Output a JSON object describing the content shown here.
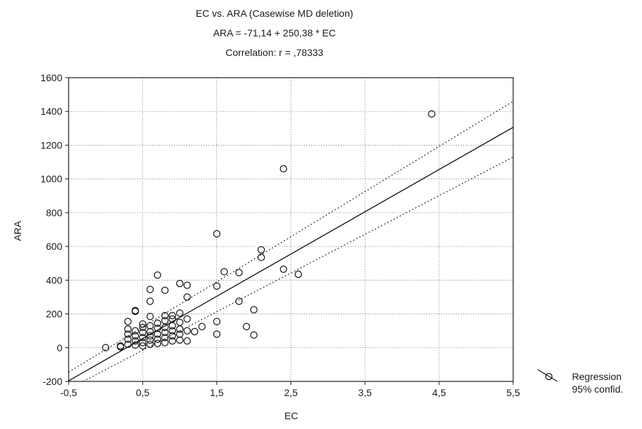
{
  "chart_data": {
    "type": "scatter",
    "title": "EC vs. ARA (Casewise MD deletion)",
    "subtitle": "ARA = -71,14 + 250,38 * EC",
    "annotation": "Correlation: r = ,78333",
    "xlabel": "EC",
    "ylabel": "ARA",
    "xlim": [
      -0.5,
      5.5
    ],
    "ylim": [
      -200,
      1600
    ],
    "xticks": [
      -0.5,
      0.5,
      1.5,
      2.5,
      3.5,
      4.5,
      5.5
    ],
    "xtick_labels": [
      "-0,5",
      "0,5",
      "1,5",
      "2,5",
      "3,5",
      "4,5",
      "5,5"
    ],
    "yticks": [
      -200,
      0,
      200,
      400,
      600,
      800,
      1000,
      1200,
      1400,
      1600
    ],
    "ytick_labels": [
      "-200",
      "0",
      "200",
      "400",
      "600",
      "800",
      "1000",
      "1200",
      "1400",
      "1600"
    ],
    "grid": true,
    "legend_position": "bottom-right, outside plot",
    "legend": [
      "Regression",
      "95% confid."
    ],
    "regression": {
      "intercept": -71.14,
      "slope": 250.38
    },
    "confidence_band": {
      "upper": [
        [
          -0.5,
          -145
        ],
        [
          5.5,
          1460
        ]
      ],
      "lower": [
        [
          -0.5,
          -245
        ],
        [
          5.5,
          1130
        ]
      ]
    },
    "points": [
      [
        0.0,
        0
      ],
      [
        0.2,
        5
      ],
      [
        0.2,
        10
      ],
      [
        0.3,
        20
      ],
      [
        0.3,
        50
      ],
      [
        0.3,
        80
      ],
      [
        0.3,
        110
      ],
      [
        0.3,
        155
      ],
      [
        0.4,
        15
      ],
      [
        0.4,
        40
      ],
      [
        0.4,
        70
      ],
      [
        0.4,
        100
      ],
      [
        0.4,
        220
      ],
      [
        0.4,
        215
      ],
      [
        0.5,
        10
      ],
      [
        0.5,
        30
      ],
      [
        0.5,
        60
      ],
      [
        0.5,
        90
      ],
      [
        0.5,
        140
      ],
      [
        0.5,
        120
      ],
      [
        0.6,
        20
      ],
      [
        0.6,
        45
      ],
      [
        0.6,
        70
      ],
      [
        0.6,
        95
      ],
      [
        0.6,
        130
      ],
      [
        0.6,
        185
      ],
      [
        0.6,
        275
      ],
      [
        0.6,
        345
      ],
      [
        0.7,
        25
      ],
      [
        0.7,
        50
      ],
      [
        0.7,
        80
      ],
      [
        0.7,
        115
      ],
      [
        0.7,
        145
      ],
      [
        0.7,
        430
      ],
      [
        0.8,
        30
      ],
      [
        0.8,
        60
      ],
      [
        0.8,
        90
      ],
      [
        0.8,
        120
      ],
      [
        0.8,
        160
      ],
      [
        0.8,
        190
      ],
      [
        0.8,
        340
      ],
      [
        0.9,
        40
      ],
      [
        0.9,
        70
      ],
      [
        0.9,
        100
      ],
      [
        0.9,
        130
      ],
      [
        0.9,
        170
      ],
      [
        0.9,
        190
      ],
      [
        1.0,
        45
      ],
      [
        1.0,
        80
      ],
      [
        1.0,
        110
      ],
      [
        1.0,
        150
      ],
      [
        1.0,
        205
      ],
      [
        1.0,
        380
      ],
      [
        1.1,
        40
      ],
      [
        1.1,
        100
      ],
      [
        1.1,
        170
      ],
      [
        1.1,
        300
      ],
      [
        1.1,
        370
      ],
      [
        1.2,
        95
      ],
      [
        1.3,
        125
      ],
      [
        1.5,
        80
      ],
      [
        1.5,
        155
      ],
      [
        1.5,
        365
      ],
      [
        1.5,
        675
      ],
      [
        1.6,
        450
      ],
      [
        1.8,
        275
      ],
      [
        1.8,
        445
      ],
      [
        1.9,
        125
      ],
      [
        2.0,
        75
      ],
      [
        2.0,
        225
      ],
      [
        2.1,
        535
      ],
      [
        2.1,
        580
      ],
      [
        2.4,
        465
      ],
      [
        2.4,
        1060
      ],
      [
        2.6,
        435
      ],
      [
        4.4,
        1385
      ]
    ]
  }
}
